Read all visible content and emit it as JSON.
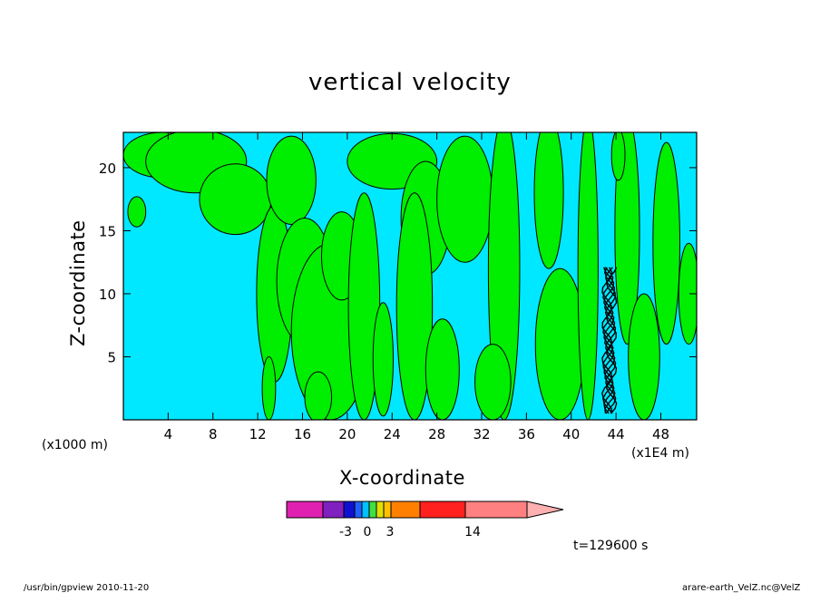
{
  "chart_data": {
    "type": "heatmap",
    "title": "vertical velocity",
    "xlabel": "X-coordinate",
    "ylabel": "Z-coordinate",
    "x_unit_left": "(x1000 m)",
    "x_unit_right": "(x1E4 m)",
    "x_ticks": [
      4,
      8,
      12,
      16,
      20,
      24,
      28,
      32,
      36,
      40,
      44,
      48
    ],
    "y_ticks": [
      5,
      10,
      15,
      20
    ],
    "xlim": [
      0,
      51.2
    ],
    "ylim": [
      0,
      22.8
    ],
    "colorbar": {
      "labels": [
        "-3",
        "0",
        "3",
        "14"
      ],
      "colors": [
        "#e020b0",
        "#8020c0",
        "#1010d0",
        "#2060ff",
        "#00c0ff",
        "#40e040",
        "#e0e000",
        "#ffc000",
        "#ff8000",
        "#ff2020",
        "#ff8080",
        "#ffb0b0"
      ]
    },
    "field_colors": {
      "negative": "#00e8ff",
      "positive": "#00ee00",
      "strong": "#000000"
    }
  },
  "time_label": "t=129600 s",
  "footer_left": "/usr/bin/gpview   2010-11-20",
  "footer_right": "arare-earth_VelZ.nc@VelZ"
}
